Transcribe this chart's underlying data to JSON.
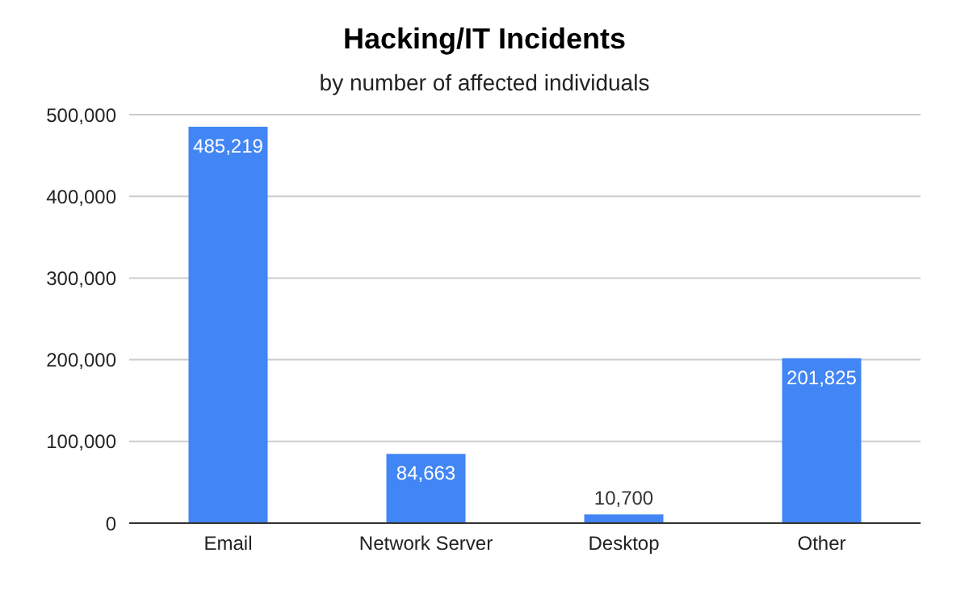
{
  "chart_data": {
    "type": "bar",
    "title": "Hacking/IT Incidents",
    "subtitle": "by number of affected individuals",
    "categories": [
      "Email",
      "Network Server",
      "Desktop",
      "Other"
    ],
    "values": [
      485219,
      84663,
      10700,
      201825
    ],
    "value_labels": [
      "485,219",
      "84,663",
      "10,700",
      "201,825"
    ],
    "color": "#4285f4",
    "ylim": [
      0,
      500000
    ],
    "yticks": [
      {
        "value": 0,
        "label": "0"
      },
      {
        "value": 100000,
        "label": "100,000"
      },
      {
        "value": 200000,
        "label": "200,000"
      },
      {
        "value": 300000,
        "label": "300,000"
      },
      {
        "value": 400000,
        "label": "400,000"
      },
      {
        "value": 500000,
        "label": "500,000"
      }
    ],
    "grid": "y",
    "legend": false
  }
}
